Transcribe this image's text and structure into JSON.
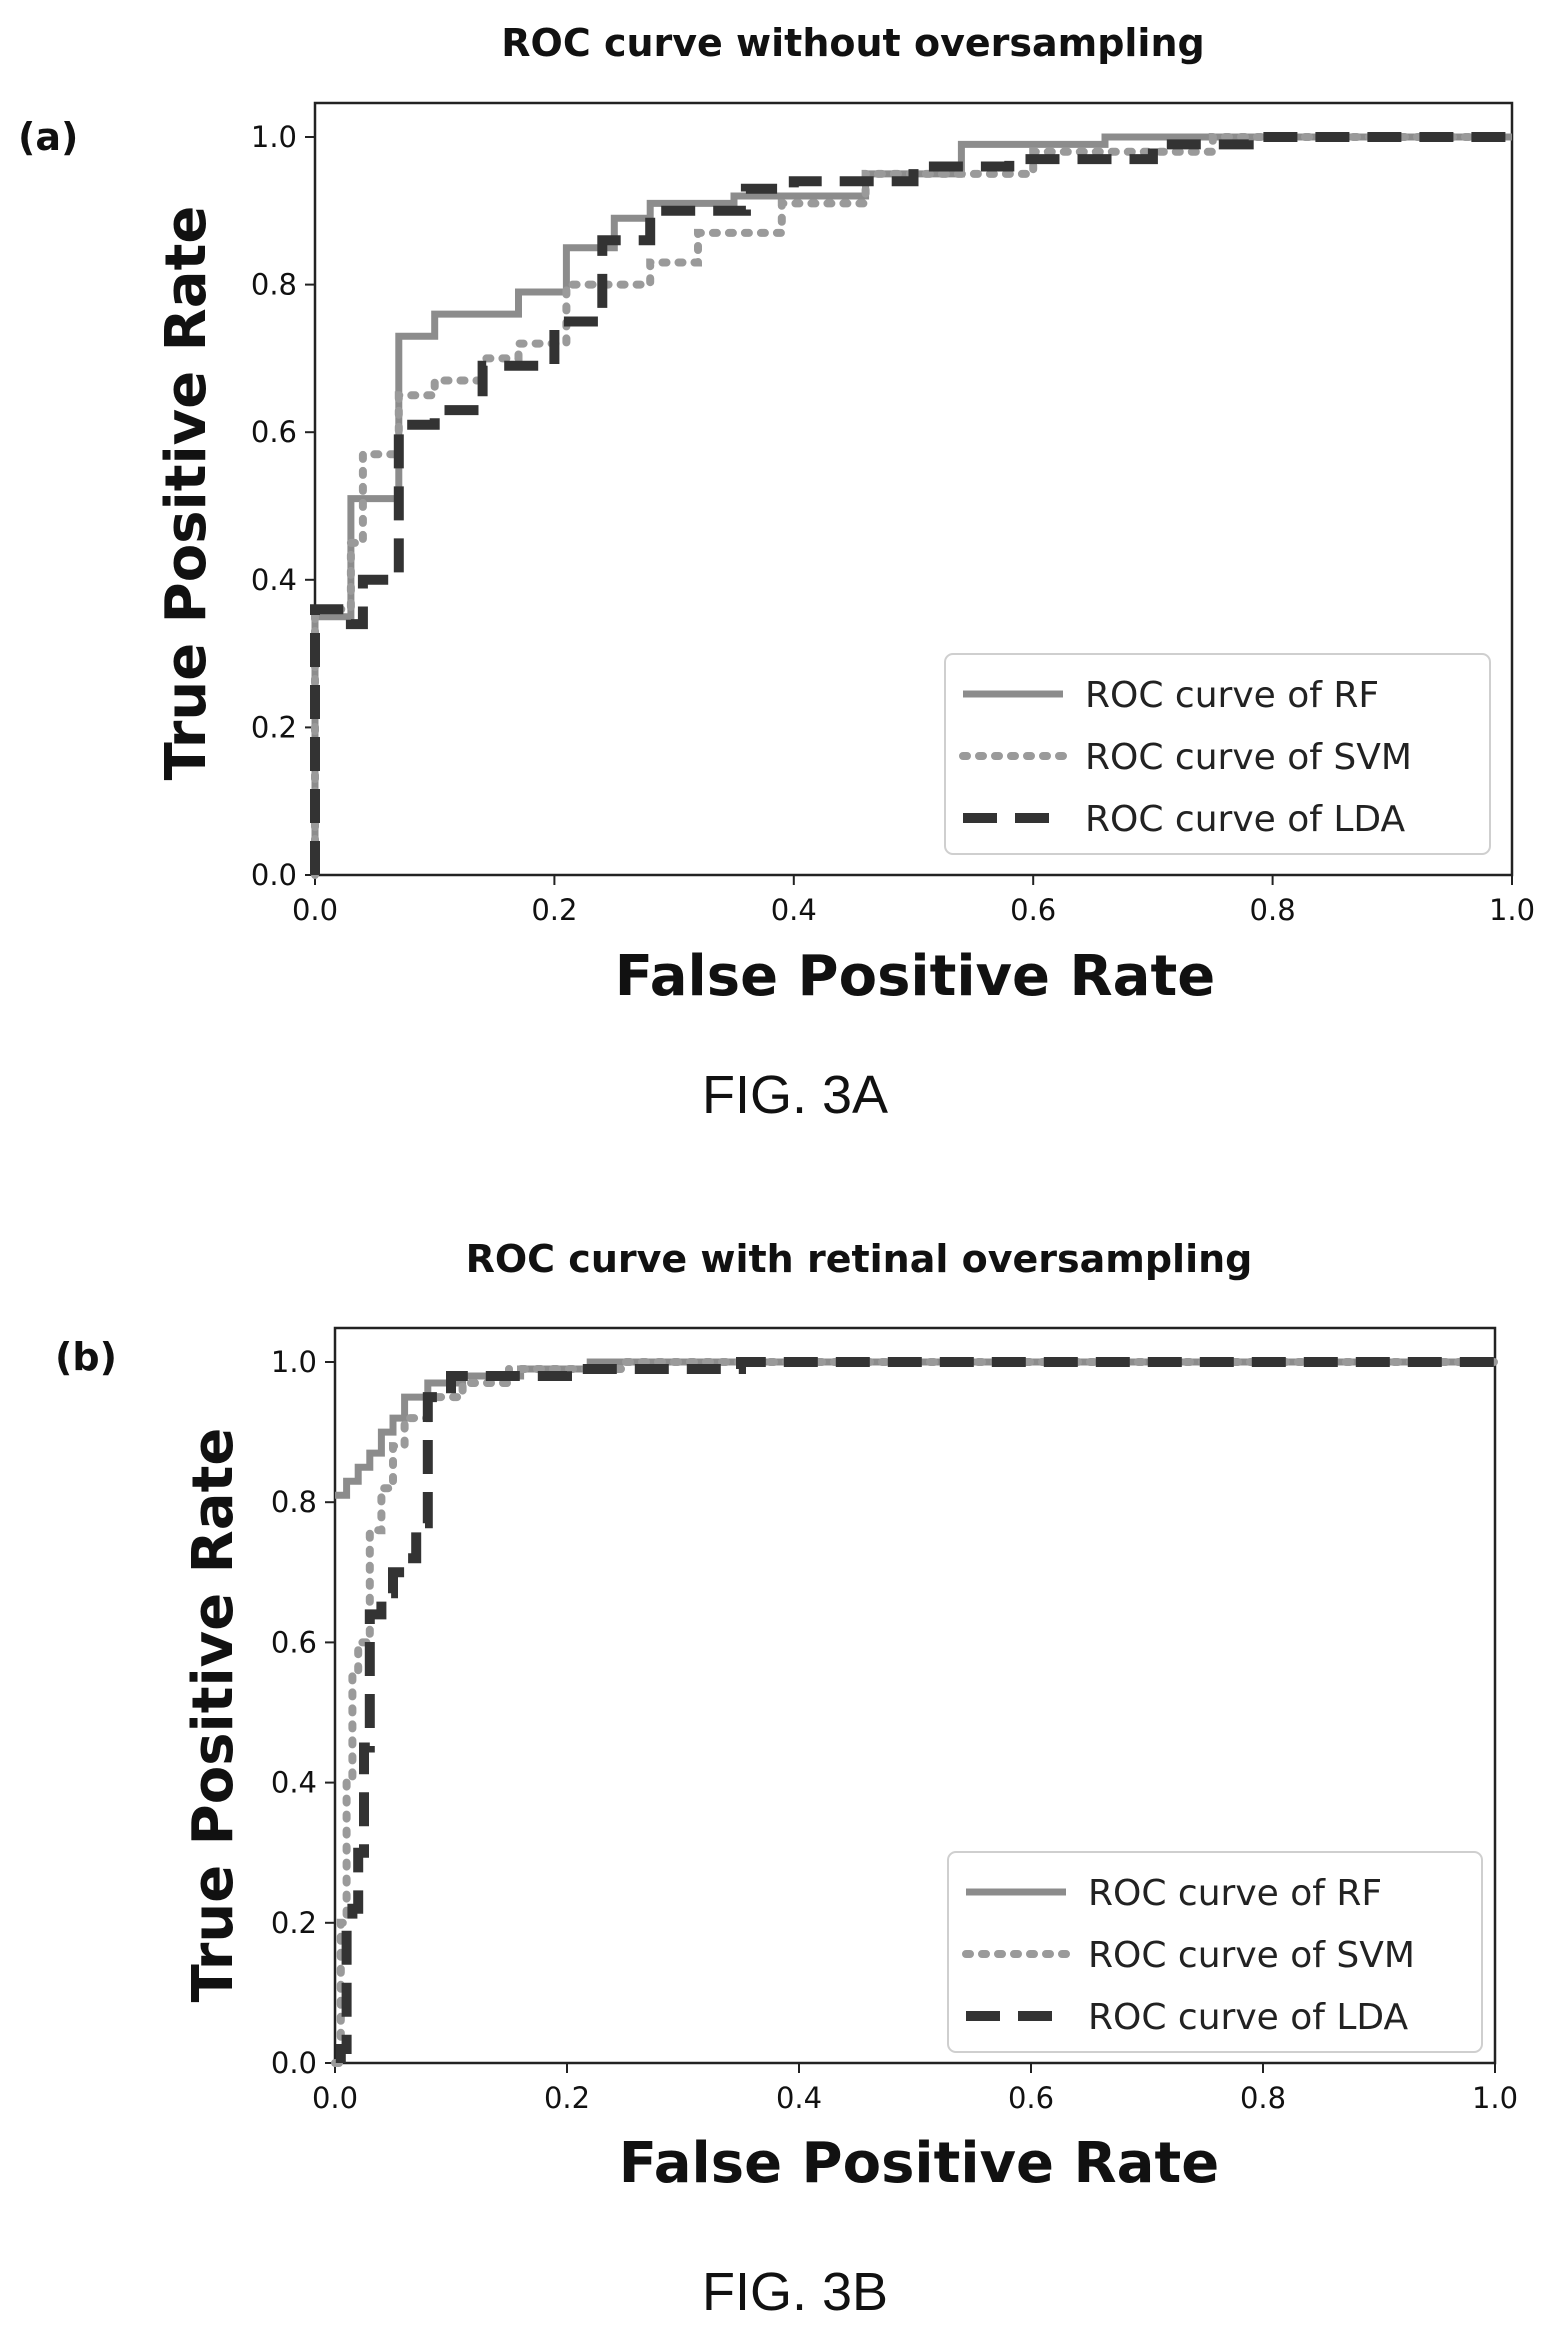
{
  "chart_data": [
    {
      "type": "line",
      "panel_label": "(a)",
      "title": "ROC curve without oversampling",
      "xlabel": "False Positive Rate",
      "ylabel": "True Positive Rate",
      "caption": "FIG. 3A",
      "xlim": [
        0.0,
        1.0
      ],
      "ylim": [
        0.0,
        1.0
      ],
      "xticks": [
        "0.0",
        "0.2",
        "0.4",
        "0.6",
        "0.8",
        "1.0"
      ],
      "yticks": [
        "0.0",
        "0.2",
        "0.4",
        "0.6",
        "0.8",
        "1.0"
      ],
      "grid": false,
      "legend_position": "lower-right",
      "series": [
        {
          "name": "ROC curve of RF",
          "style": "solid",
          "color": "#8c8c8c",
          "points": [
            [
              0,
              0
            ],
            [
              0,
              0.35
            ],
            [
              0.03,
              0.35
            ],
            [
              0.03,
              0.51
            ],
            [
              0.07,
              0.51
            ],
            [
              0.07,
              0.73
            ],
            [
              0.1,
              0.73
            ],
            [
              0.1,
              0.76
            ],
            [
              0.17,
              0.76
            ],
            [
              0.17,
              0.79
            ],
            [
              0.21,
              0.79
            ],
            [
              0.21,
              0.85
            ],
            [
              0.25,
              0.85
            ],
            [
              0.25,
              0.89
            ],
            [
              0.28,
              0.89
            ],
            [
              0.28,
              0.91
            ],
            [
              0.35,
              0.91
            ],
            [
              0.35,
              0.92
            ],
            [
              0.46,
              0.92
            ],
            [
              0.46,
              0.95
            ],
            [
              0.54,
              0.95
            ],
            [
              0.54,
              0.99
            ],
            [
              0.66,
              0.99
            ],
            [
              0.66,
              1.0
            ],
            [
              1.0,
              1.0
            ]
          ]
        },
        {
          "name": "ROC curve of SVM",
          "style": "dotted",
          "color": "#9a9a9a",
          "points": [
            [
              0,
              0
            ],
            [
              0,
              0.36
            ],
            [
              0.03,
              0.36
            ],
            [
              0.03,
              0.45
            ],
            [
              0.04,
              0.45
            ],
            [
              0.04,
              0.57
            ],
            [
              0.07,
              0.57
            ],
            [
              0.07,
              0.65
            ],
            [
              0.1,
              0.65
            ],
            [
              0.1,
              0.67
            ],
            [
              0.14,
              0.67
            ],
            [
              0.14,
              0.7
            ],
            [
              0.17,
              0.7
            ],
            [
              0.17,
              0.72
            ],
            [
              0.21,
              0.72
            ],
            [
              0.21,
              0.8
            ],
            [
              0.28,
              0.8
            ],
            [
              0.28,
              0.83
            ],
            [
              0.32,
              0.83
            ],
            [
              0.32,
              0.87
            ],
            [
              0.39,
              0.87
            ],
            [
              0.39,
              0.91
            ],
            [
              0.46,
              0.91
            ],
            [
              0.46,
              0.95
            ],
            [
              0.6,
              0.95
            ],
            [
              0.6,
              0.98
            ],
            [
              0.75,
              0.98
            ],
            [
              0.75,
              1.0
            ],
            [
              1.0,
              1.0
            ]
          ]
        },
        {
          "name": "ROC curve of LDA",
          "style": "dashed",
          "color": "#333333",
          "points": [
            [
              0,
              0
            ],
            [
              0,
              0.36
            ],
            [
              0.03,
              0.36
            ],
            [
              0.03,
              0.34
            ],
            [
              0.04,
              0.34
            ],
            [
              0.04,
              0.4
            ],
            [
              0.07,
              0.4
            ],
            [
              0.07,
              0.61
            ],
            [
              0.1,
              0.61
            ],
            [
              0.1,
              0.63
            ],
            [
              0.14,
              0.63
            ],
            [
              0.14,
              0.69
            ],
            [
              0.2,
              0.69
            ],
            [
              0.2,
              0.75
            ],
            [
              0.24,
              0.75
            ],
            [
              0.24,
              0.86
            ],
            [
              0.28,
              0.86
            ],
            [
              0.28,
              0.9
            ],
            [
              0.36,
              0.9
            ],
            [
              0.36,
              0.93
            ],
            [
              0.4,
              0.93
            ],
            [
              0.4,
              0.94
            ],
            [
              0.5,
              0.94
            ],
            [
              0.5,
              0.96
            ],
            [
              0.58,
              0.96
            ],
            [
              0.58,
              0.97
            ],
            [
              0.7,
              0.97
            ],
            [
              0.7,
              0.99
            ],
            [
              0.78,
              0.99
            ],
            [
              0.78,
              1.0
            ],
            [
              1.0,
              1.0
            ]
          ]
        }
      ]
    },
    {
      "type": "line",
      "panel_label": "(b)",
      "title": "ROC curve with retinal oversampling",
      "xlabel": "False Positive Rate",
      "ylabel": "True Positive Rate",
      "caption": "FIG. 3B",
      "xlim": [
        0.0,
        1.0
      ],
      "ylim": [
        0.0,
        1.0
      ],
      "xticks": [
        "0.0",
        "0.2",
        "0.4",
        "0.6",
        "0.8",
        "1.0"
      ],
      "yticks": [
        "0.0",
        "0.2",
        "0.4",
        "0.6",
        "0.8",
        "1.0"
      ],
      "grid": false,
      "legend_position": "lower-right",
      "series": [
        {
          "name": "ROC curve of RF",
          "style": "solid",
          "color": "#8c8c8c",
          "points": [
            [
              0,
              0.81
            ],
            [
              0.01,
              0.81
            ],
            [
              0.01,
              0.83
            ],
            [
              0.02,
              0.83
            ],
            [
              0.02,
              0.85
            ],
            [
              0.03,
              0.85
            ],
            [
              0.03,
              0.87
            ],
            [
              0.04,
              0.87
            ],
            [
              0.04,
              0.9
            ],
            [
              0.05,
              0.9
            ],
            [
              0.05,
              0.92
            ],
            [
              0.06,
              0.92
            ],
            [
              0.06,
              0.95
            ],
            [
              0.08,
              0.95
            ],
            [
              0.08,
              0.97
            ],
            [
              0.11,
              0.97
            ],
            [
              0.11,
              0.98
            ],
            [
              0.16,
              0.98
            ],
            [
              0.16,
              0.99
            ],
            [
              0.22,
              0.99
            ],
            [
              0.22,
              1.0
            ],
            [
              1.0,
              1.0
            ]
          ]
        },
        {
          "name": "ROC curve of SVM",
          "style": "dotted",
          "color": "#9a9a9a",
          "points": [
            [
              0,
              0.0
            ],
            [
              0.005,
              0.0
            ],
            [
              0.005,
              0.2
            ],
            [
              0.01,
              0.2
            ],
            [
              0.01,
              0.4
            ],
            [
              0.015,
              0.4
            ],
            [
              0.015,
              0.56
            ],
            [
              0.02,
              0.56
            ],
            [
              0.02,
              0.6
            ],
            [
              0.03,
              0.6
            ],
            [
              0.03,
              0.76
            ],
            [
              0.04,
              0.76
            ],
            [
              0.04,
              0.82
            ],
            [
              0.05,
              0.82
            ],
            [
              0.05,
              0.88
            ],
            [
              0.06,
              0.88
            ],
            [
              0.06,
              0.92
            ],
            [
              0.08,
              0.92
            ],
            [
              0.08,
              0.95
            ],
            [
              0.11,
              0.95
            ],
            [
              0.11,
              0.97
            ],
            [
              0.15,
              0.97
            ],
            [
              0.15,
              0.99
            ],
            [
              0.25,
              0.99
            ],
            [
              0.25,
              1.0
            ],
            [
              1.0,
              1.0
            ]
          ]
        },
        {
          "name": "ROC curve of LDA",
          "style": "dashed",
          "color": "#333333",
          "points": [
            [
              0.005,
              0.0
            ],
            [
              0.005,
              0.02
            ],
            [
              0.01,
              0.02
            ],
            [
              0.01,
              0.2
            ],
            [
              0.015,
              0.2
            ],
            [
              0.015,
              0.22
            ],
            [
              0.02,
              0.22
            ],
            [
              0.02,
              0.3
            ],
            [
              0.025,
              0.3
            ],
            [
              0.025,
              0.45
            ],
            [
              0.03,
              0.45
            ],
            [
              0.03,
              0.64
            ],
            [
              0.04,
              0.64
            ],
            [
              0.04,
              0.67
            ],
            [
              0.05,
              0.67
            ],
            [
              0.05,
              0.7
            ],
            [
              0.06,
              0.7
            ],
            [
              0.06,
              0.72
            ],
            [
              0.07,
              0.72
            ],
            [
              0.07,
              0.77
            ],
            [
              0.08,
              0.77
            ],
            [
              0.08,
              0.95
            ],
            [
              0.1,
              0.95
            ],
            [
              0.1,
              0.98
            ],
            [
              0.2,
              0.98
            ],
            [
              0.2,
              0.99
            ],
            [
              0.35,
              0.99
            ],
            [
              0.35,
              1.0
            ],
            [
              1.0,
              1.0
            ]
          ]
        }
      ]
    }
  ]
}
